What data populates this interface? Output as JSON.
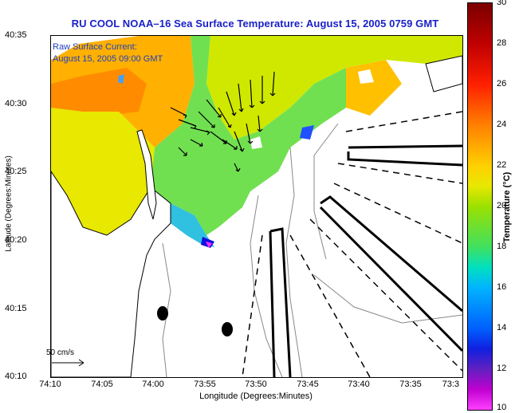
{
  "title": "RU COOL  NOAA–16  Sea Surface Temperature:  August 15, 2005 0759 GMT",
  "legend": {
    "line1": "Raw Surface Current:",
    "line2": "August 15, 2005 09:00 GMT"
  },
  "axes": {
    "xlabel": "Longitude (Degrees:Minutes)",
    "ylabel": "Latitude (Degrees:Minutes)",
    "xticks": [
      "74:10",
      "74:05",
      "74:00",
      "73:55",
      "73:50",
      "73:45",
      "73:40",
      "73:35",
      "73:3"
    ],
    "yticks": [
      "40:35",
      "40:30",
      "40:25",
      "40:20",
      "40:15",
      "40:10"
    ]
  },
  "scale": {
    "label": "50 cm/s"
  },
  "colorbar": {
    "label": "Temperature (°C)",
    "ticks": [
      "30",
      "28",
      "26",
      "24",
      "22",
      "20",
      "18",
      "16",
      "14",
      "12",
      "10"
    ]
  },
  "colors": {
    "title": "#1a20c8",
    "warm": "#ff8c00",
    "mid": "#e8e800",
    "cool": "#40d880",
    "cold": "#1010e0"
  }
}
